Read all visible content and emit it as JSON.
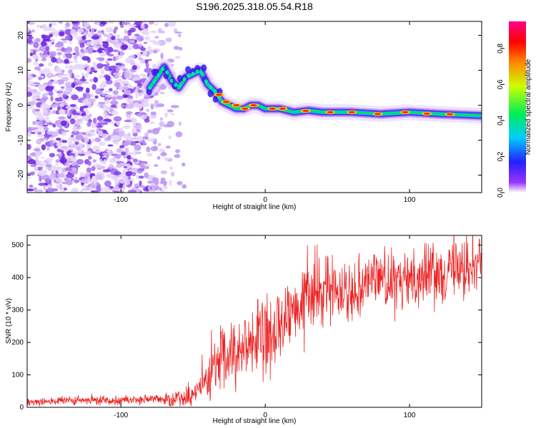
{
  "title": "S196.2025.318.05.54.R18",
  "chart_data": [
    {
      "type": "heatmap",
      "name": "spectrogram",
      "xlabel": "Height of straight line (km)",
      "ylabel": "Frequency (Hz)",
      "xlim": [
        -165,
        150
      ],
      "ylim": [
        -25,
        24
      ],
      "xticks": [
        -100,
        0,
        100
      ],
      "yticks": [
        -20,
        -10,
        0,
        10,
        20
      ],
      "xtick_labels": [
        "-100",
        "0",
        "100"
      ],
      "ytick_labels": [
        "-20",
        "-10",
        "0",
        "10",
        "20"
      ],
      "ridge": {
        "x": [
          -80,
          -75,
          -70,
          -65,
          -60,
          -55,
          -50,
          -45,
          -40,
          -35,
          -30,
          -25,
          -20,
          -15,
          -10,
          -5,
          0,
          10,
          20,
          30,
          40,
          60,
          80,
          100,
          120,
          150
        ],
        "y": [
          5,
          8,
          11,
          7,
          5,
          8,
          9,
          10,
          6,
          4,
          1,
          0,
          -1,
          -1,
          0,
          0,
          -1,
          -1,
          -2,
          -1.5,
          -2,
          -2,
          -2.5,
          -2,
          -2.5,
          -3
        ]
      },
      "noise_region_x": [
        -165,
        -55
      ],
      "colorbar": {
        "label": "Normalized spectral amplitude",
        "range": [
          0,
          0.95
        ],
        "ticks": [
          0.0,
          0.2,
          0.4,
          0.6,
          0.8
        ],
        "tick_labels": [
          "0.0",
          "0.2",
          "0.4",
          "0.6",
          "0.8"
        ]
      }
    },
    {
      "type": "line",
      "name": "snr",
      "xlabel": "Height of straight line (km)",
      "ylabel": "SNR (10 * v/v)",
      "xlim": [
        -165,
        150
      ],
      "ylim": [
        0,
        530
      ],
      "xticks": [
        -100,
        0,
        100
      ],
      "yticks": [
        0,
        100,
        200,
        300,
        400,
        500
      ],
      "xtick_labels": [
        "-100",
        "0",
        "100"
      ],
      "ytick_labels": [
        "0",
        "100",
        "200",
        "300",
        "400",
        "500"
      ],
      "color": "#ee2222",
      "trend": {
        "x": [
          -165,
          -70,
          -55,
          -45,
          -35,
          -20,
          -10,
          0,
          10,
          20,
          30,
          50,
          60,
          70,
          80,
          90,
          100,
          110,
          120,
          150
        ],
        "y": [
          18,
          25,
          30,
          60,
          120,
          170,
          210,
          200,
          250,
          280,
          340,
          380,
          350,
          400,
          410,
          370,
          400,
          410,
          420,
          440
        ]
      }
    }
  ]
}
